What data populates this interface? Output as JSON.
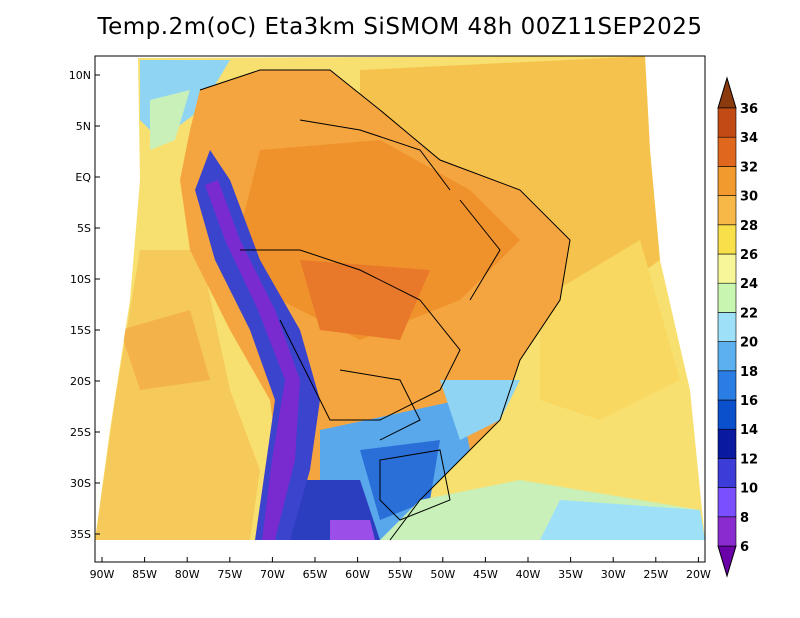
{
  "title": "Temp.2m(oC) Eta3km SiSMOM 48h 00Z11SEP2025",
  "lon_ticks": [
    "90W",
    "85W",
    "80W",
    "75W",
    "70W",
    "65W",
    "60W",
    "55W",
    "50W",
    "45W",
    "40W",
    "35W",
    "30W",
    "25W",
    "20W"
  ],
  "lat_ticks": [
    "10N",
    "5N",
    "EQ",
    "5S",
    "10S",
    "15S",
    "20S",
    "25S",
    "30S",
    "35S"
  ],
  "colorbar": {
    "levels": [
      "6",
      "8",
      "10",
      "12",
      "14",
      "16",
      "18",
      "20",
      "22",
      "24",
      "26",
      "28",
      "30",
      "32",
      "34",
      "36"
    ],
    "colors": [
      "#6a00a8",
      "#8a2bd0",
      "#7a4fff",
      "#3c3cd8",
      "#0a1aa0",
      "#0a4fcc",
      "#2b7de6",
      "#5cb0f0",
      "#9ee0f8",
      "#c8f5b0",
      "#f7f79a",
      "#f9e04a",
      "#f8b848",
      "#f29a2e",
      "#e0681e",
      "#c24a14",
      "#8b3a0e"
    ]
  }
}
